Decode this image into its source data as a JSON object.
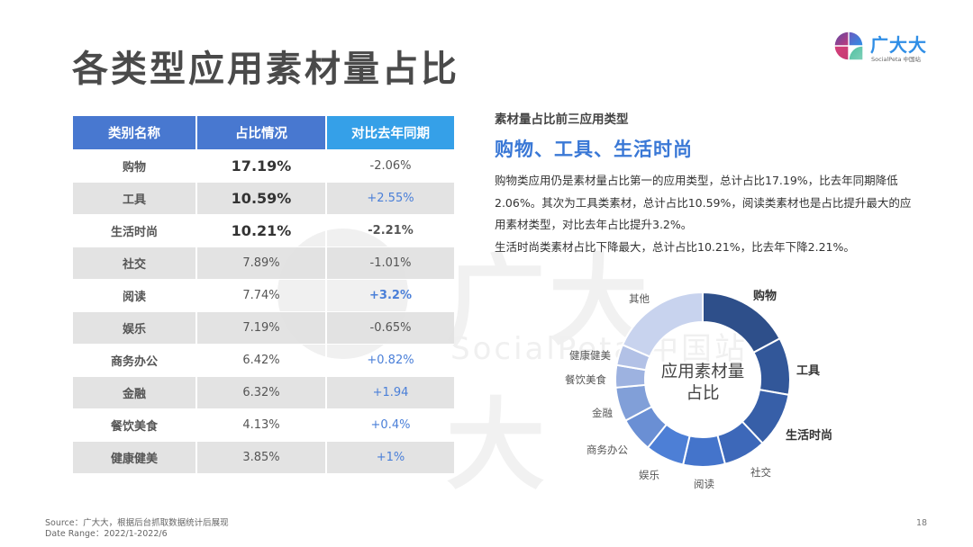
{
  "page": {
    "title": "各类型应用素材量占比",
    "page_number": "18"
  },
  "logo": {
    "name": "广大大",
    "subtitle": "SocialPeta 中国站"
  },
  "watermark": {
    "text": "广大大",
    "subtitle": "SocialPeta 中国站"
  },
  "table": {
    "headers": [
      "类别名称",
      "占比情况",
      "对比去年同期"
    ],
    "rows": [
      {
        "name": "购物",
        "share": "17.19%",
        "change": "-2.06%"
      },
      {
        "name": "工具",
        "share": "10.59%",
        "change": "+2.55%"
      },
      {
        "name": "生活时尚",
        "share": "10.21%",
        "change": "-2.21%"
      },
      {
        "name": "社交",
        "share": "7.89%",
        "change": "-1.01%"
      },
      {
        "name": "阅读",
        "share": "7.74%",
        "change": "+3.2%"
      },
      {
        "name": "娱乐",
        "share": "7.19%",
        "change": "-0.65%"
      },
      {
        "name": "商务办公",
        "share": "6.42%",
        "change": "+0.82%"
      },
      {
        "name": "金融",
        "share": "6.32%",
        "change": "+1.94"
      },
      {
        "name": "餐饮美食",
        "share": "4.13%",
        "change": "+0.4%"
      },
      {
        "name": "健康健美",
        "share": "3.85%",
        "change": "+1%"
      }
    ]
  },
  "summary": {
    "subtitle": "素材量占比前三应用类型",
    "headline": "购物、工具、生活时尚",
    "paragraph1": "购物类应用仍是素材量占比第一的应用类型，总计占比17.19%，比去年同期降低2.06%。其次为工具类素材，总计占比10.59%，阅读类素材也是占比提升最大的应用素材类型，对比去年占比提升3.2%。",
    "paragraph2": "生活时尚类素材占比下降最大，总计占比10.21%，比去年下降2.21%。"
  },
  "chart_data": {
    "type": "pie",
    "variant": "donut",
    "title": "应用素材量占比",
    "center_label_line1": "应用素材量",
    "center_label_line2": "占比",
    "categories": [
      "购物",
      "工具",
      "生活时尚",
      "社交",
      "阅读",
      "娱乐",
      "商务办公",
      "金融",
      "餐饮美食",
      "健康健美",
      "其他"
    ],
    "values": [
      17.19,
      10.59,
      10.21,
      7.89,
      7.74,
      7.19,
      6.42,
      6.32,
      4.13,
      3.85,
      18.47
    ],
    "colors": [
      "#2e4f8a",
      "#325799",
      "#375fa8",
      "#3d68b9",
      "#4474cb",
      "#4d7fd6",
      "#6a8fd4",
      "#819fd8",
      "#9db2e0",
      "#b2c1e6",
      "#c8d3ee"
    ],
    "yoy_change": [
      "-2.06%",
      "+2.55%",
      "-2.21%",
      "-1.01%",
      "+3.2%",
      "-0.65%",
      "+0.82%",
      "+1.94",
      "+0.4%",
      "+1%",
      ""
    ],
    "legend": "none (labels placed outside slices)",
    "highlighted_labels": [
      "购物",
      "工具",
      "生活时尚"
    ]
  },
  "footer": {
    "source": "Source：广大大，根据后台抓取数据统计后展现",
    "date_range": "Date Range：2022/1-2022/6"
  }
}
